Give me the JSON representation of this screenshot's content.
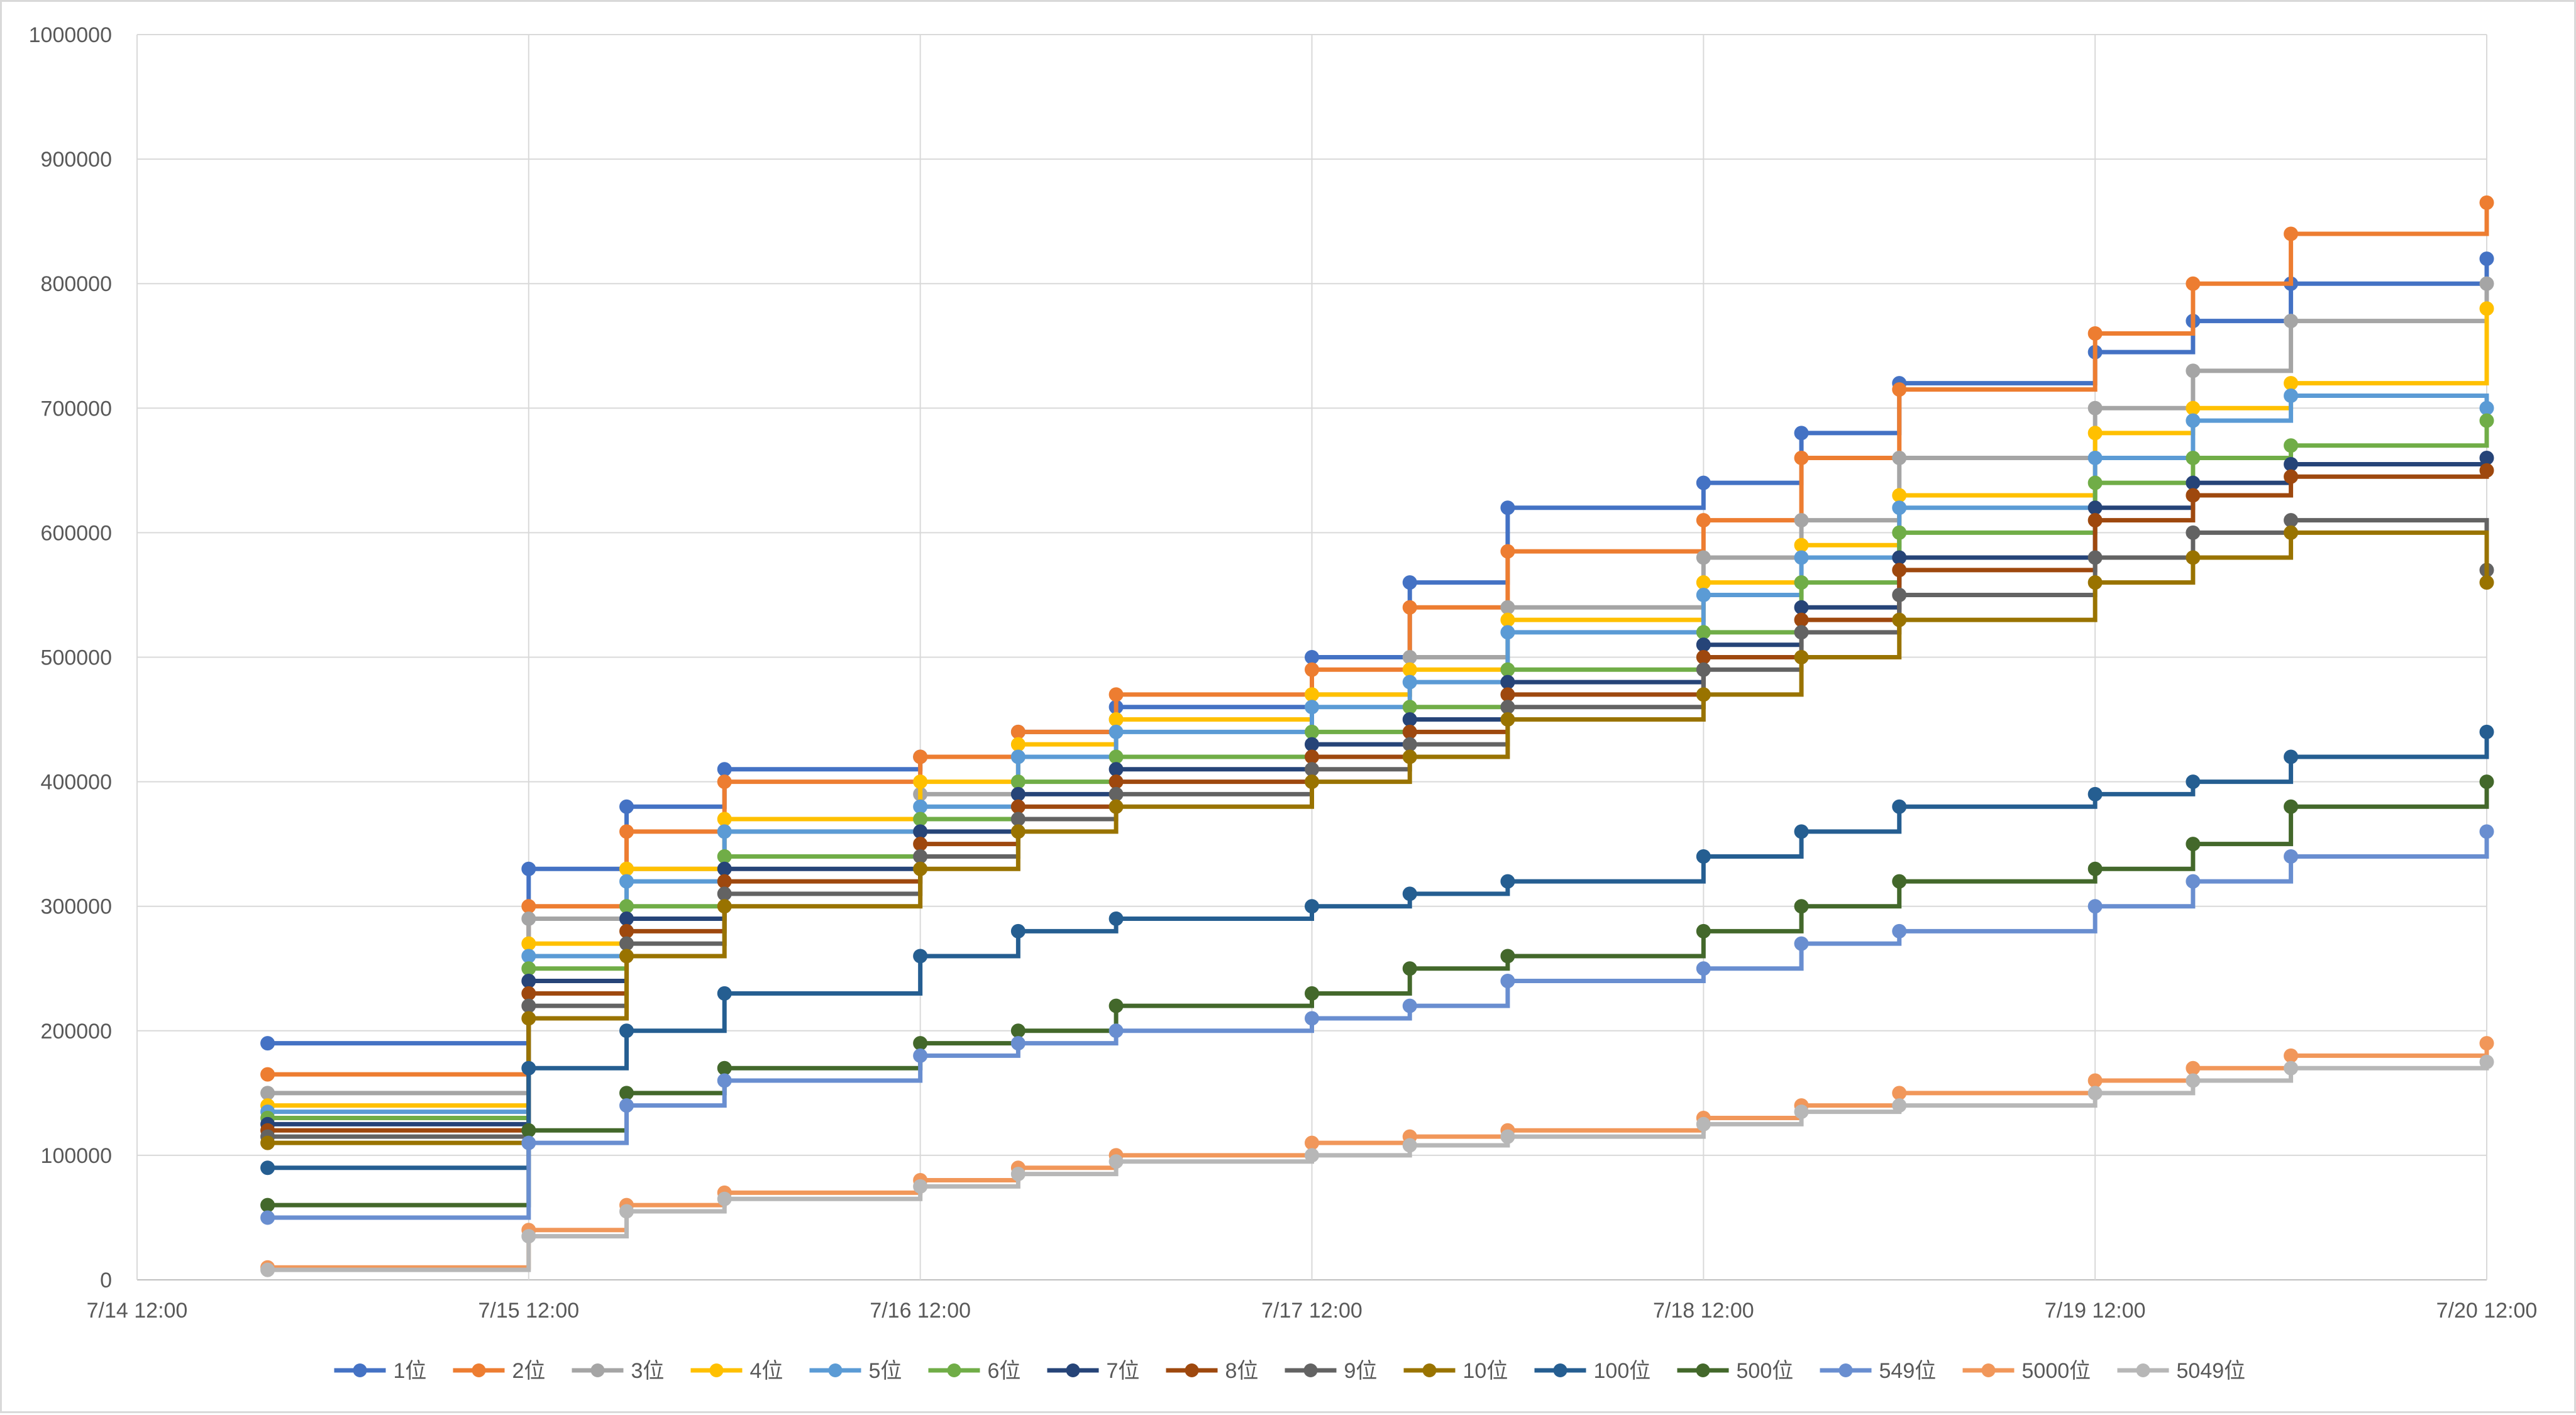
{
  "chart_data": {
    "type": "line",
    "title": "",
    "xlabel": "",
    "ylabel": "",
    "ylim": [
      0,
      1000000
    ],
    "xlim": [
      "2024-07-14 12:00",
      "2024-07-20 12:00"
    ],
    "y_ticks": [
      "0",
      "100000",
      "200000",
      "300000",
      "400000",
      "500000",
      "600000",
      "700000",
      "800000",
      "900000",
      "1000000"
    ],
    "x_ticks": [
      "7/14 12:00",
      "7/15 12:00",
      "7/16 12:00",
      "7/17 12:00",
      "7/18 12:00",
      "7/19 12:00",
      "7/20 12:00"
    ],
    "grid": true,
    "legend_position": "bottom",
    "markers": true,
    "series": [
      {
        "name": "1位",
        "color": "#4472C4",
        "x": [
          "7/14 20:00",
          "7/15 12:00",
          "7/15 18:00",
          "7/16 00:00",
          "7/16 12:00",
          "7/16 18:00",
          "7/17 00:00",
          "7/17 12:00",
          "7/17 18:00",
          "7/18 00:00",
          "7/18 12:00",
          "7/18 18:00",
          "7/19 00:00",
          "7/19 12:00",
          "7/19 18:00",
          "7/20 00:00",
          "7/20 12:00"
        ],
        "values": [
          190000,
          330000,
          380000,
          410000,
          420000,
          440000,
          460000,
          500000,
          560000,
          620000,
          640000,
          680000,
          720000,
          745000,
          770000,
          800000,
          820000
        ]
      },
      {
        "name": "2位",
        "color": "#ED7D31",
        "x": [
          "7/14 20:00",
          "7/15 12:00",
          "7/15 18:00",
          "7/16 00:00",
          "7/16 12:00",
          "7/16 18:00",
          "7/17 00:00",
          "7/17 12:00",
          "7/17 18:00",
          "7/18 00:00",
          "7/18 12:00",
          "7/18 18:00",
          "7/19 00:00",
          "7/19 12:00",
          "7/19 18:00",
          "7/20 00:00",
          "7/20 12:00"
        ],
        "values": [
          165000,
          300000,
          360000,
          400000,
          420000,
          440000,
          470000,
          490000,
          540000,
          585000,
          610000,
          660000,
          715000,
          760000,
          800000,
          840000,
          865000
        ]
      },
      {
        "name": "3位",
        "color": "#A5A5A5",
        "x": [
          "7/14 20:00",
          "7/15 12:00",
          "7/15 18:00",
          "7/16 00:00",
          "7/16 12:00",
          "7/16 18:00",
          "7/17 00:00",
          "7/17 12:00",
          "7/17 18:00",
          "7/18 00:00",
          "7/18 12:00",
          "7/18 18:00",
          "7/19 00:00",
          "7/19 12:00",
          "7/19 18:00",
          "7/20 00:00",
          "7/20 12:00"
        ],
        "values": [
          150000,
          290000,
          330000,
          360000,
          390000,
          420000,
          450000,
          470000,
          500000,
          540000,
          580000,
          610000,
          660000,
          700000,
          730000,
          770000,
          800000
        ]
      },
      {
        "name": "4位",
        "color": "#FFC000",
        "x": [
          "7/14 20:00",
          "7/15 12:00",
          "7/15 18:00",
          "7/16 00:00",
          "7/16 12:00",
          "7/16 18:00",
          "7/17 00:00",
          "7/17 12:00",
          "7/17 18:00",
          "7/18 00:00",
          "7/18 12:00",
          "7/18 18:00",
          "7/19 00:00",
          "7/19 12:00",
          "7/19 18:00",
          "7/20 00:00",
          "7/20 12:00"
        ],
        "values": [
          140000,
          270000,
          330000,
          370000,
          400000,
          430000,
          450000,
          470000,
          490000,
          530000,
          560000,
          590000,
          630000,
          680000,
          700000,
          720000,
          780000
        ]
      },
      {
        "name": "5位",
        "color": "#5B9BD5",
        "x": [
          "7/14 20:00",
          "7/15 12:00",
          "7/15 18:00",
          "7/16 00:00",
          "7/16 12:00",
          "7/16 18:00",
          "7/17 00:00",
          "7/17 12:00",
          "7/17 18:00",
          "7/18 00:00",
          "7/18 12:00",
          "7/18 18:00",
          "7/19 00:00",
          "7/19 12:00",
          "7/19 18:00",
          "7/20 00:00",
          "7/20 12:00"
        ],
        "values": [
          135000,
          260000,
          320000,
          360000,
          380000,
          420000,
          440000,
          460000,
          480000,
          520000,
          550000,
          580000,
          620000,
          660000,
          690000,
          710000,
          700000
        ]
      },
      {
        "name": "6位",
        "color": "#70AD47",
        "x": [
          "7/14 20:00",
          "7/15 12:00",
          "7/15 18:00",
          "7/16 00:00",
          "7/16 12:00",
          "7/16 18:00",
          "7/17 00:00",
          "7/17 12:00",
          "7/17 18:00",
          "7/18 00:00",
          "7/18 12:00",
          "7/18 18:00",
          "7/19 00:00",
          "7/19 12:00",
          "7/19 18:00",
          "7/20 00:00",
          "7/20 12:00"
        ],
        "values": [
          130000,
          250000,
          300000,
          340000,
          370000,
          400000,
          420000,
          440000,
          460000,
          490000,
          520000,
          560000,
          600000,
          640000,
          660000,
          670000,
          690000
        ]
      },
      {
        "name": "7位",
        "color": "#264478",
        "x": [
          "7/14 20:00",
          "7/15 12:00",
          "7/15 18:00",
          "7/16 00:00",
          "7/16 12:00",
          "7/16 18:00",
          "7/17 00:00",
          "7/17 12:00",
          "7/17 18:00",
          "7/18 00:00",
          "7/18 12:00",
          "7/18 18:00",
          "7/19 00:00",
          "7/19 12:00",
          "7/19 18:00",
          "7/20 00:00",
          "7/20 12:00"
        ],
        "values": [
          125000,
          240000,
          290000,
          330000,
          360000,
          390000,
          410000,
          430000,
          450000,
          480000,
          510000,
          540000,
          580000,
          620000,
          640000,
          655000,
          660000
        ]
      },
      {
        "name": "8位",
        "color": "#9E480E",
        "x": [
          "7/14 20:00",
          "7/15 12:00",
          "7/15 18:00",
          "7/16 00:00",
          "7/16 12:00",
          "7/16 18:00",
          "7/17 00:00",
          "7/17 12:00",
          "7/17 18:00",
          "7/18 00:00",
          "7/18 12:00",
          "7/18 18:00",
          "7/19 00:00",
          "7/19 12:00",
          "7/19 18:00",
          "7/20 00:00",
          "7/20 12:00"
        ],
        "values": [
          120000,
          230000,
          280000,
          320000,
          350000,
          380000,
          400000,
          420000,
          440000,
          470000,
          500000,
          530000,
          570000,
          610000,
          630000,
          645000,
          650000
        ]
      },
      {
        "name": "9位",
        "color": "#636363",
        "x": [
          "7/14 20:00",
          "7/15 12:00",
          "7/15 18:00",
          "7/16 00:00",
          "7/16 12:00",
          "7/16 18:00",
          "7/17 00:00",
          "7/17 12:00",
          "7/17 18:00",
          "7/18 00:00",
          "7/18 12:00",
          "7/18 18:00",
          "7/19 00:00",
          "7/19 12:00",
          "7/19 18:00",
          "7/20 00:00",
          "7/20 12:00"
        ],
        "values": [
          115000,
          220000,
          270000,
          310000,
          340000,
          370000,
          390000,
          410000,
          430000,
          460000,
          490000,
          520000,
          550000,
          580000,
          600000,
          610000,
          570000
        ]
      },
      {
        "name": "10位",
        "color": "#997300",
        "x": [
          "7/14 20:00",
          "7/15 12:00",
          "7/15 18:00",
          "7/16 00:00",
          "7/16 12:00",
          "7/16 18:00",
          "7/17 00:00",
          "7/17 12:00",
          "7/17 18:00",
          "7/18 00:00",
          "7/18 12:00",
          "7/18 18:00",
          "7/19 00:00",
          "7/19 12:00",
          "7/19 18:00",
          "7/20 00:00",
          "7/20 12:00"
        ],
        "values": [
          110000,
          210000,
          260000,
          300000,
          330000,
          360000,
          380000,
          400000,
          420000,
          450000,
          470000,
          500000,
          530000,
          560000,
          580000,
          600000,
          560000
        ]
      },
      {
        "name": "100位",
        "color": "#255E91",
        "x": [
          "7/14 20:00",
          "7/15 12:00",
          "7/15 18:00",
          "7/16 00:00",
          "7/16 12:00",
          "7/16 18:00",
          "7/17 00:00",
          "7/17 12:00",
          "7/17 18:00",
          "7/18 00:00",
          "7/18 12:00",
          "7/18 18:00",
          "7/19 00:00",
          "7/19 12:00",
          "7/19 18:00",
          "7/20 00:00",
          "7/20 12:00"
        ],
        "values": [
          90000,
          170000,
          200000,
          230000,
          260000,
          280000,
          290000,
          300000,
          310000,
          320000,
          340000,
          360000,
          380000,
          390000,
          400000,
          420000,
          440000
        ]
      },
      {
        "name": "500位",
        "color": "#43682B",
        "x": [
          "7/14 20:00",
          "7/15 12:00",
          "7/15 18:00",
          "7/16 00:00",
          "7/16 12:00",
          "7/16 18:00",
          "7/17 00:00",
          "7/17 12:00",
          "7/17 18:00",
          "7/18 00:00",
          "7/18 12:00",
          "7/18 18:00",
          "7/19 00:00",
          "7/19 12:00",
          "7/19 18:00",
          "7/20 00:00",
          "7/20 12:00"
        ],
        "values": [
          60000,
          120000,
          150000,
          170000,
          190000,
          200000,
          220000,
          230000,
          250000,
          260000,
          280000,
          300000,
          320000,
          330000,
          350000,
          380000,
          400000
        ]
      },
      {
        "name": "549位",
        "color": "#698ED0",
        "x": [
          "7/14 20:00",
          "7/15 12:00",
          "7/15 18:00",
          "7/16 00:00",
          "7/16 12:00",
          "7/16 18:00",
          "7/17 00:00",
          "7/17 12:00",
          "7/17 18:00",
          "7/18 00:00",
          "7/18 12:00",
          "7/18 18:00",
          "7/19 00:00",
          "7/19 12:00",
          "7/19 18:00",
          "7/20 00:00",
          "7/20 12:00"
        ],
        "values": [
          50000,
          110000,
          140000,
          160000,
          180000,
          190000,
          200000,
          210000,
          220000,
          240000,
          250000,
          270000,
          280000,
          300000,
          320000,
          340000,
          360000
        ]
      },
      {
        "name": "5000位",
        "color": "#F1975A",
        "x": [
          "7/14 20:00",
          "7/15 12:00",
          "7/15 18:00",
          "7/16 00:00",
          "7/16 12:00",
          "7/16 18:00",
          "7/17 00:00",
          "7/17 12:00",
          "7/17 18:00",
          "7/18 00:00",
          "7/18 12:00",
          "7/18 18:00",
          "7/19 00:00",
          "7/19 12:00",
          "7/19 18:00",
          "7/20 00:00",
          "7/20 12:00"
        ],
        "values": [
          10000,
          40000,
          60000,
          70000,
          80000,
          90000,
          100000,
          110000,
          115000,
          120000,
          130000,
          140000,
          150000,
          160000,
          170000,
          180000,
          190000
        ]
      },
      {
        "name": "5049位",
        "color": "#B7B7B7",
        "x": [
          "7/14 20:00",
          "7/15 12:00",
          "7/15 18:00",
          "7/16 00:00",
          "7/16 12:00",
          "7/16 18:00",
          "7/17 00:00",
          "7/17 12:00",
          "7/17 18:00",
          "7/18 00:00",
          "7/18 12:00",
          "7/18 18:00",
          "7/19 00:00",
          "7/19 12:00",
          "7/19 18:00",
          "7/20 00:00",
          "7/20 12:00"
        ],
        "values": [
          8000,
          35000,
          55000,
          65000,
          75000,
          85000,
          95000,
          100000,
          108000,
          115000,
          125000,
          135000,
          140000,
          150000,
          160000,
          170000,
          175000
        ]
      }
    ]
  }
}
